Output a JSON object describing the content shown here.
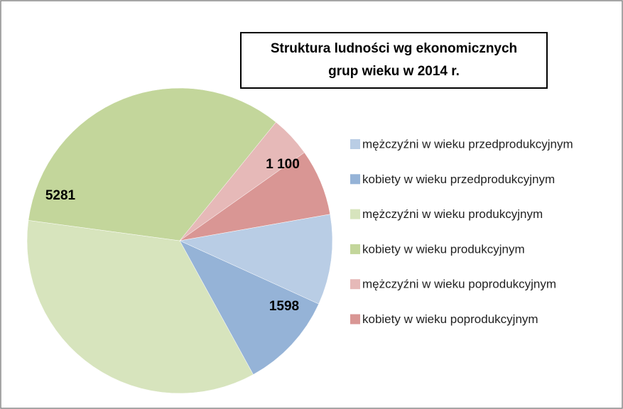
{
  "chart_data": {
    "type": "pie",
    "title": "Struktura ludności wg ekonomicznych grup wieku w 2014 r.",
    "categories": [
      "mężczyźni w wieku przedprodukcyjnym",
      "kobiety w wieku przedprodukcyjnym",
      "mężczyźni w wieku produkcyjnym",
      "kobiety w wieku produkcyjnym",
      "mężczyźni w wieku poprodukcyjnym",
      "kobiety w wieku poprodukcyjnym"
    ],
    "values": [
      1500,
      1598,
      5500,
      5281,
      680,
      1100
    ],
    "value_labels": [
      null,
      "1598",
      null,
      "5281",
      null,
      "1 100"
    ],
    "colors": [
      "#b9cde5",
      "#95b3d7",
      "#d7e4bd",
      "#c3d69b",
      "#e6b9b8",
      "#d99694"
    ],
    "legend": "right"
  }
}
